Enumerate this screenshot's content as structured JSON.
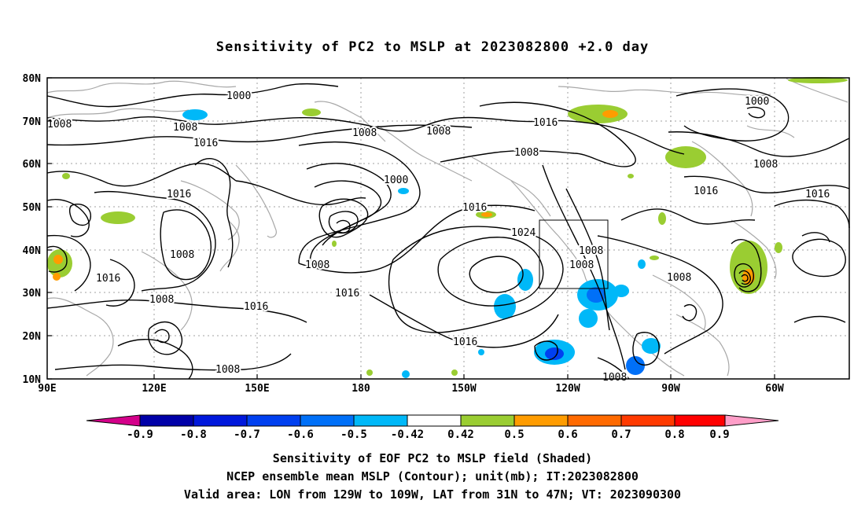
{
  "title": "Sensitivity of PC2 to MSLP at 2023082800 +2.0 day",
  "lat_labels": [
    "80N",
    "70N",
    "60N",
    "50N",
    "40N",
    "30N",
    "20N",
    "10N"
  ],
  "lon_labels": [
    "90E",
    "120E",
    "150E",
    "180",
    "150W",
    "120W",
    "90W",
    "60W"
  ],
  "contour_labels": {
    "c1000a": "1000",
    "c1000b": "1000",
    "c1000c": "1000",
    "c1008a": "1008",
    "c1008b": "1008",
    "c1008c": "1008",
    "c1008d": "1008",
    "c1008e": "1008",
    "c1008f": "1008",
    "c1008g": "1008",
    "c1008h": "1008",
    "c1008i": "1008",
    "c1008j": "1008",
    "c1008k": "1008",
    "c1008l": "1008",
    "c1008m": "1008",
    "c1016a": "1016",
    "c1016b": "1016",
    "c1016c": "1016",
    "c1016d": "1016",
    "c1016e": "1016",
    "c1016f": "1016",
    "c1016g": "1016",
    "c1016h": "1016",
    "c1016i": "1016",
    "c1024": "1024"
  },
  "colorbar": {
    "bins": [
      {
        "color": "#d4008a"
      },
      {
        "color": "#0000a8"
      },
      {
        "color": "#0018dc"
      },
      {
        "color": "#0040f0"
      },
      {
        "color": "#0070f8"
      },
      {
        "color": "#00b8f8"
      },
      {
        "color": "#ffffff"
      },
      {
        "color": "#9acd32"
      },
      {
        "color": "#ff9c00"
      },
      {
        "color": "#ff6a00"
      },
      {
        "color": "#ff3a00"
      },
      {
        "color": "#ff0000"
      },
      {
        "color": "#ff9ec8"
      }
    ],
    "tick_labels": [
      "-0.9",
      "-0.8",
      "-0.7",
      "-0.6",
      "-0.5",
      "-0.42",
      "0.42",
      "0.5",
      "0.6",
      "0.7",
      "0.8",
      "0.9"
    ]
  },
  "footer": {
    "line1": "Sensitivity of EOF PC2 to MSLP field (Shaded)",
    "line2": "NCEP ensemble mean MSLP (Contour); unit(mb); IT:2023082800",
    "line3": "Valid area: LON from 129W to 109W, LAT from 31N to 47N; VT: 2023090300"
  },
  "colors": {
    "contour": "#000000",
    "coast": "#a8a8a8",
    "grid": "#a0a0a0",
    "green": "#9acd32",
    "orange": "#ff9c00",
    "lightblue": "#00b8f8",
    "blue": "#0070f8",
    "darkblue": "#0040f0"
  }
}
